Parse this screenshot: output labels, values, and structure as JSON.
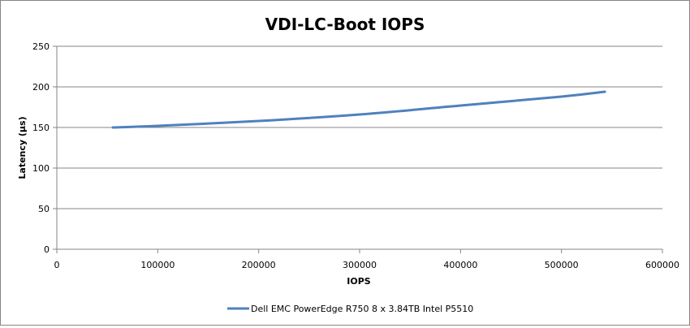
{
  "chart_data": {
    "type": "line",
    "title": "VDI-LC-Boot IOPS",
    "xlabel": "IOPS",
    "ylabel": "Latency (µs)",
    "xlim": [
      0,
      600000
    ],
    "ylim": [
      0,
      250
    ],
    "xticks": [
      "0",
      "100000",
      "200000",
      "300000",
      "400000",
      "500000",
      "600000"
    ],
    "yticks": [
      "0",
      "50",
      "100",
      "150",
      "200",
      "250"
    ],
    "grid": "horizontal",
    "legend_position": "bottom",
    "series": [
      {
        "name": "Dell EMC PowerEdge R750 8 x 3.84TB Intel P5510",
        "color": "#4F81BD",
        "x": [
          55500,
          100000,
          200000,
          300000,
          400000,
          500000,
          543000
        ],
        "y": [
          150,
          152,
          158,
          166,
          177,
          188,
          194
        ]
      }
    ]
  }
}
